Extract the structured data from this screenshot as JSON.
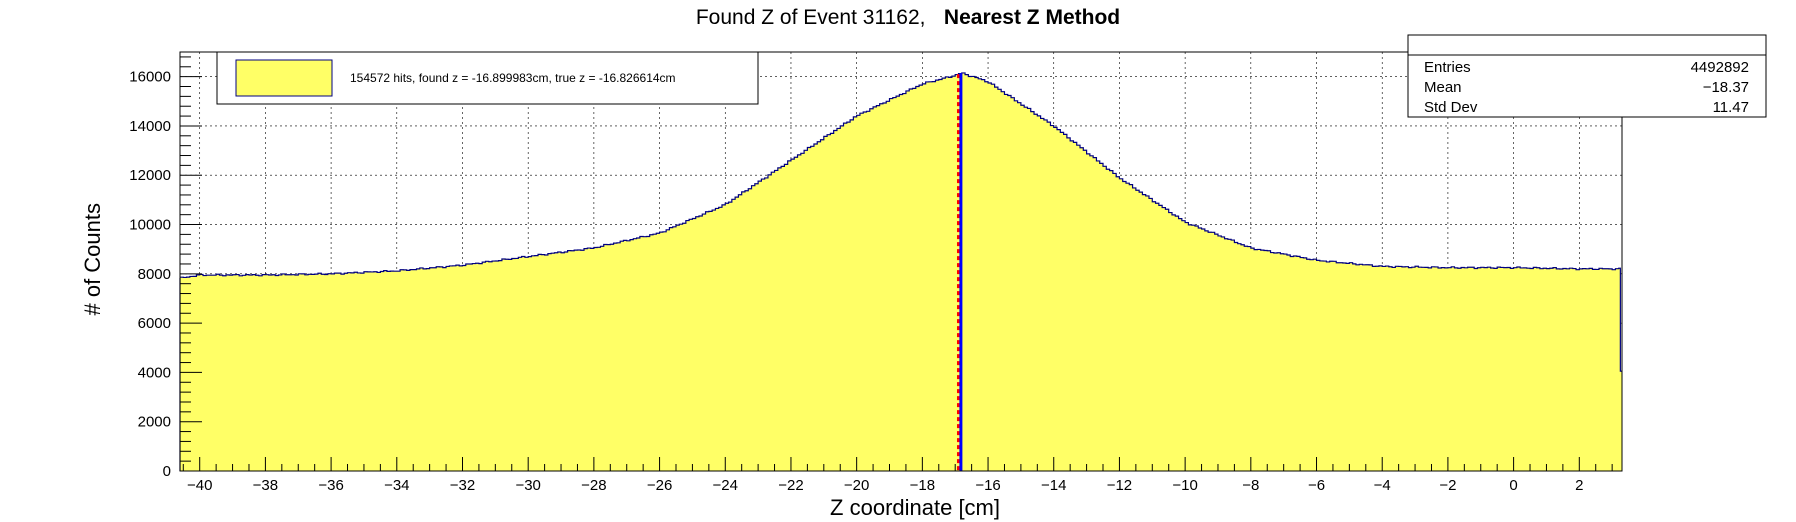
{
  "chart_data": {
    "type": "histogram",
    "title": "Found Z of Event 31162,",
    "title_bold": "Nearest Z Method",
    "xlabel": "Z coordinate [cm]",
    "ylabel": "# of Counts",
    "xlim": [
      -40.6,
      3.3
    ],
    "ylim": [
      0,
      17000
    ],
    "x_ticks": [
      -40,
      -38,
      -36,
      -34,
      -32,
      -30,
      -28,
      -26,
      -24,
      -22,
      -20,
      -18,
      -16,
      -14,
      -12,
      -10,
      -8,
      -6,
      -4,
      -2,
      0,
      2
    ],
    "y_ticks": [
      0,
      2000,
      4000,
      6000,
      8000,
      10000,
      12000,
      14000,
      16000
    ],
    "grid": true,
    "fill_color": "#ffff66",
    "line_color": "#000080",
    "profile": {
      "x": [
        -40.6,
        -40.0,
        -38.0,
        -36.0,
        -34.0,
        -32.0,
        -30.0,
        -28.0,
        -26.0,
        -24.0,
        -22.0,
        -20.0,
        -18.0,
        -17.0,
        -16.8,
        -16.0,
        -14.0,
        -12.0,
        -10.0,
        -8.0,
        -6.0,
        -4.0,
        -2.0,
        0.0,
        2.0,
        3.2
      ],
      "y": [
        7820,
        7950,
        7950,
        8000,
        8120,
        8350,
        8700,
        9050,
        9650,
        10800,
        12600,
        14400,
        15700,
        16050,
        16150,
        15800,
        14000,
        11900,
        10100,
        9050,
        8550,
        8300,
        8250,
        8250,
        8200,
        8200
      ]
    },
    "last_bin": {
      "x": 3.25,
      "y": 4050
    },
    "markers": [
      {
        "name": "found z",
        "x": -16.899983,
        "color": "#ff0000",
        "style": "dashed"
      },
      {
        "name": "true z",
        "x": -16.826614,
        "color": "#0000ff",
        "style": "solid"
      }
    ],
    "legend": {
      "text": "154572 hits, found z = -16.899983cm, true z = -16.826614cm",
      "placement": "top-left"
    },
    "stats": {
      "entries_label": "Entries",
      "entries_value": "4492892",
      "mean_label": "Mean",
      "mean_value": "−18.37",
      "std_label": "Std Dev",
      "std_value": "11.47"
    }
  }
}
